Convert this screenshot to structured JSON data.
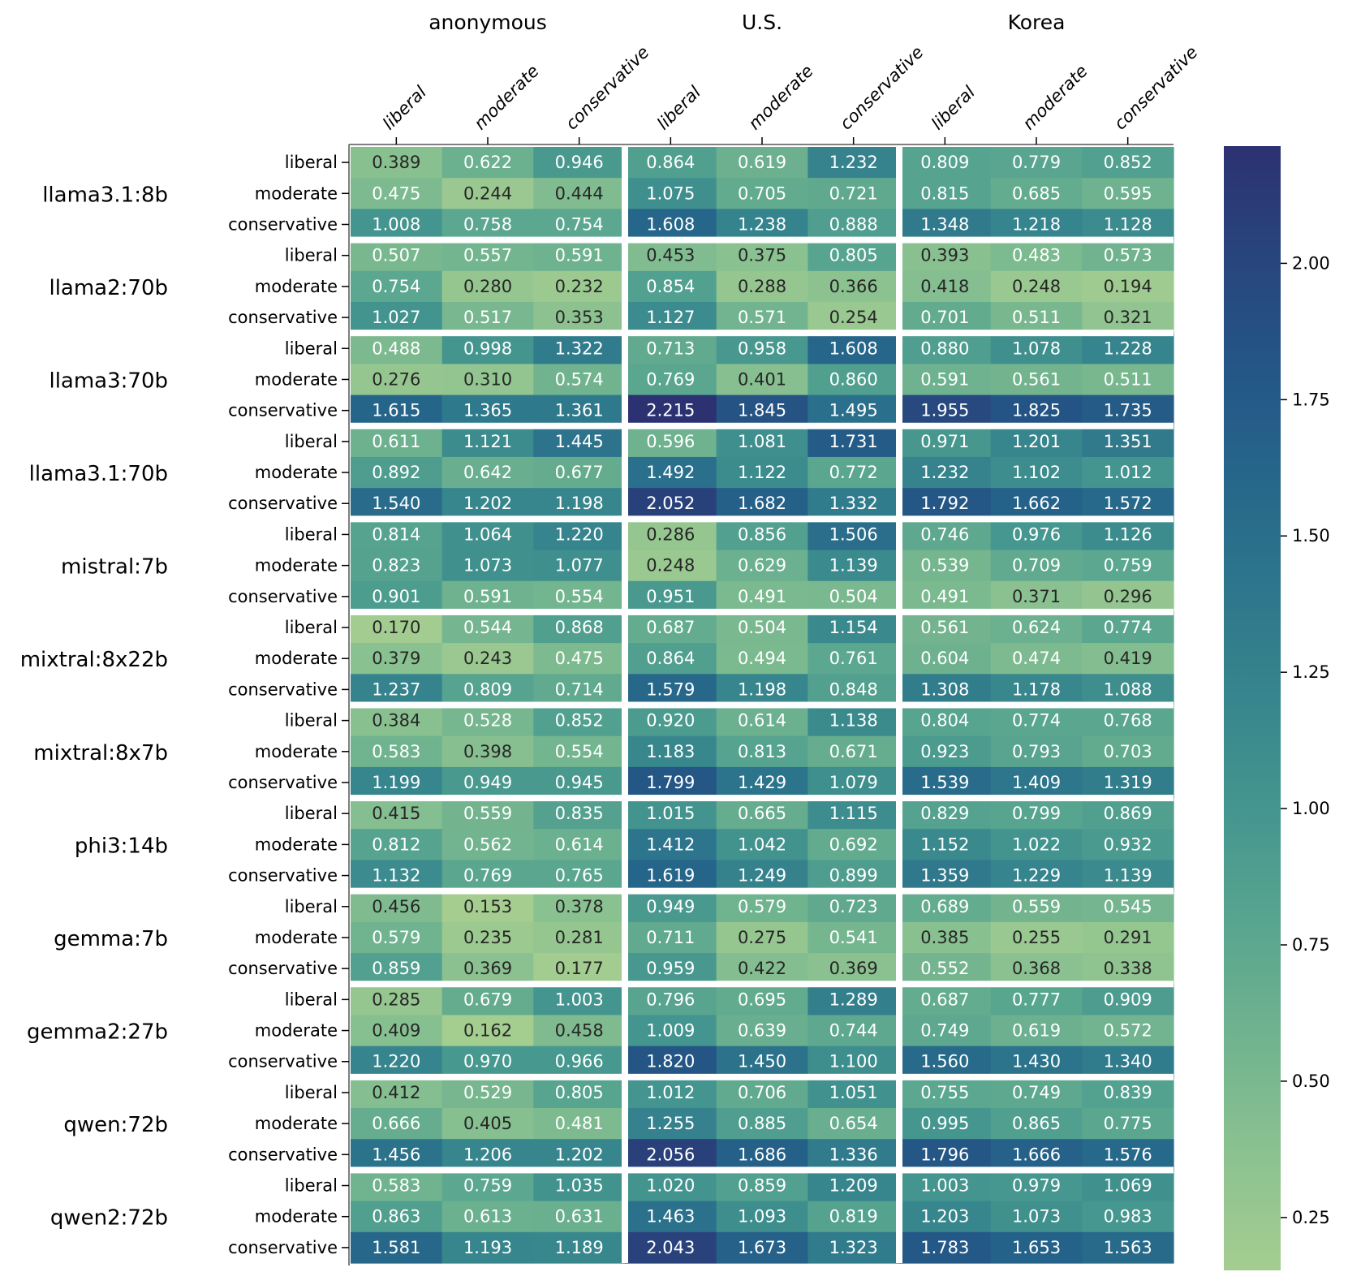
{
  "chart_data": {
    "type": "heatmap",
    "title": "",
    "column_groups": [
      "anonymous",
      "U.S.",
      "Korea"
    ],
    "column_labels": [
      "liberal",
      "moderate",
      "conservative"
    ],
    "row_groups": [
      "llama3.1:8b",
      "llama2:70b",
      "llama3:70b",
      "llama3.1:70b",
      "mistral:7b",
      "mixtral:8x22b",
      "mixtral:8x7b",
      "phi3:14b",
      "gemma:7b",
      "gemma2:27b",
      "qwen:72b",
      "qwen2:72b"
    ],
    "row_labels": [
      "liberal",
      "moderate",
      "conservative"
    ],
    "colorbar": {
      "min": 0.153,
      "max": 2.215,
      "ticks": [
        0.25,
        0.5,
        0.75,
        1.0,
        1.25,
        1.5,
        1.75,
        2.0
      ],
      "tick_labels": [
        "0.25",
        "0.50",
        "0.75",
        "1.00",
        "1.25",
        "1.50",
        "1.75",
        "2.00"
      ],
      "colormap": "crest",
      "colors": [
        "#a5cd90",
        "#8cc290",
        "#72b48f",
        "#5aa68f",
        "#46978f",
        "#38878d",
        "#2e778c",
        "#26678a",
        "#245686",
        "#28457e",
        "#2c3172"
      ]
    },
    "values": [
      [
        [
          0.389,
          0.622,
          0.946,
          0.864,
          0.619,
          1.232,
          0.809,
          0.779,
          0.852
        ],
        [
          0.475,
          0.244,
          0.444,
          1.075,
          0.705,
          0.721,
          0.815,
          0.685,
          0.595
        ],
        [
          1.008,
          0.758,
          0.754,
          1.608,
          1.238,
          0.888,
          1.348,
          1.218,
          1.128
        ]
      ],
      [
        [
          0.507,
          0.557,
          0.591,
          0.453,
          0.375,
          0.805,
          0.393,
          0.483,
          0.573
        ],
        [
          0.754,
          0.28,
          0.232,
          0.854,
          0.288,
          0.366,
          0.418,
          0.248,
          0.194
        ],
        [
          1.027,
          0.517,
          0.353,
          1.127,
          0.571,
          0.254,
          0.701,
          0.511,
          0.321
        ]
      ],
      [
        [
          0.488,
          0.998,
          1.322,
          0.713,
          0.958,
          1.608,
          0.88,
          1.078,
          1.228
        ],
        [
          0.276,
          0.31,
          0.574,
          0.769,
          0.401,
          0.86,
          0.591,
          0.561,
          0.511
        ],
        [
          1.615,
          1.365,
          1.361,
          2.215,
          1.845,
          1.495,
          1.955,
          1.825,
          1.735
        ]
      ],
      [
        [
          0.611,
          1.121,
          1.445,
          0.596,
          1.081,
          1.731,
          0.971,
          1.201,
          1.351
        ],
        [
          0.892,
          0.642,
          0.677,
          1.492,
          1.122,
          0.772,
          1.232,
          1.102,
          1.012
        ],
        [
          1.54,
          1.202,
          1.198,
          2.052,
          1.682,
          1.332,
          1.792,
          1.662,
          1.572
        ]
      ],
      [
        [
          0.814,
          1.064,
          1.22,
          0.286,
          0.856,
          1.506,
          0.746,
          0.976,
          1.126
        ],
        [
          0.823,
          1.073,
          1.077,
          0.248,
          0.629,
          1.139,
          0.539,
          0.709,
          0.759
        ],
        [
          0.901,
          0.591,
          0.554,
          0.951,
          0.491,
          0.504,
          0.491,
          0.371,
          0.296
        ]
      ],
      [
        [
          0.17,
          0.544,
          0.868,
          0.687,
          0.504,
          1.154,
          0.561,
          0.624,
          0.774
        ],
        [
          0.379,
          0.243,
          0.475,
          0.864,
          0.494,
          0.761,
          0.604,
          0.474,
          0.419
        ],
        [
          1.237,
          0.809,
          0.714,
          1.579,
          1.198,
          0.848,
          1.308,
          1.178,
          1.088
        ]
      ],
      [
        [
          0.384,
          0.528,
          0.852,
          0.92,
          0.614,
          1.138,
          0.804,
          0.774,
          0.768
        ],
        [
          0.583,
          0.398,
          0.554,
          1.183,
          0.813,
          0.671,
          0.923,
          0.793,
          0.703
        ],
        [
          1.199,
          0.949,
          0.945,
          1.799,
          1.429,
          1.079,
          1.539,
          1.409,
          1.319
        ]
      ],
      [
        [
          0.415,
          0.559,
          0.835,
          1.015,
          0.665,
          1.115,
          0.829,
          0.799,
          0.869
        ],
        [
          0.812,
          0.562,
          0.614,
          1.412,
          1.042,
          0.692,
          1.152,
          1.022,
          0.932
        ],
        [
          1.132,
          0.769,
          0.765,
          1.619,
          1.249,
          0.899,
          1.359,
          1.229,
          1.139
        ]
      ],
      [
        [
          0.456,
          0.153,
          0.378,
          0.949,
          0.579,
          0.723,
          0.689,
          0.559,
          0.545
        ],
        [
          0.579,
          0.235,
          0.281,
          0.711,
          0.275,
          0.541,
          0.385,
          0.255,
          0.291
        ],
        [
          0.859,
          0.369,
          0.177,
          0.959,
          0.422,
          0.369,
          0.552,
          0.368,
          0.338
        ]
      ],
      [
        [
          0.285,
          0.679,
          1.003,
          0.796,
          0.695,
          1.289,
          0.687,
          0.777,
          0.909
        ],
        [
          0.409,
          0.162,
          0.458,
          1.009,
          0.639,
          0.744,
          0.749,
          0.619,
          0.572
        ],
        [
          1.22,
          0.97,
          0.966,
          1.82,
          1.45,
          1.1,
          1.56,
          1.43,
          1.34
        ]
      ],
      [
        [
          0.412,
          0.529,
          0.805,
          1.012,
          0.706,
          1.051,
          0.755,
          0.749,
          0.839
        ],
        [
          0.666,
          0.405,
          0.481,
          1.255,
          0.885,
          0.654,
          0.995,
          0.865,
          0.775
        ],
        [
          1.456,
          1.206,
          1.202,
          2.056,
          1.686,
          1.336,
          1.796,
          1.666,
          1.576
        ]
      ],
      [
        [
          0.583,
          0.759,
          1.035,
          1.02,
          0.859,
          1.209,
          1.003,
          0.979,
          1.069
        ],
        [
          0.863,
          0.613,
          0.631,
          1.463,
          1.093,
          0.819,
          1.203,
          1.073,
          0.983
        ],
        [
          1.581,
          1.193,
          1.189,
          2.043,
          1.673,
          1.323,
          1.783,
          1.653,
          1.563
        ]
      ]
    ]
  }
}
